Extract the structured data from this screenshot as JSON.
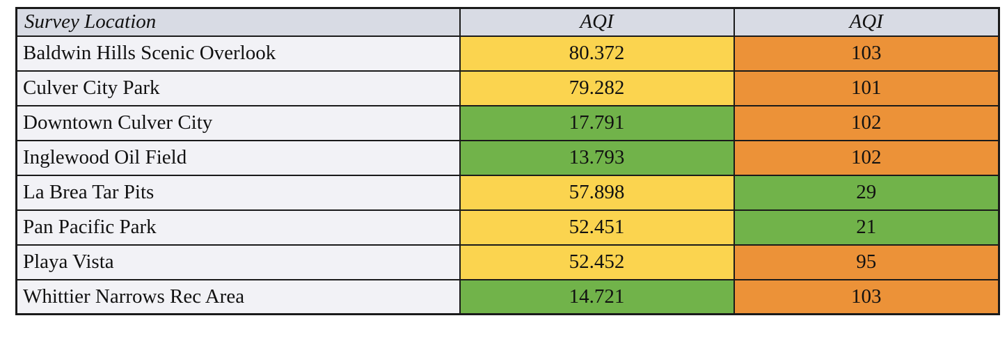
{
  "table": {
    "columns": [
      {
        "label": "Survey Location"
      },
      {
        "label": "AQI"
      },
      {
        "label": "AQI"
      }
    ],
    "rows": [
      {
        "location": "Baldwin Hills Scenic Overlook",
        "aqi1": "80.372",
        "aqi1_level": "yellow",
        "aqi2": "103",
        "aqi2_level": "orange"
      },
      {
        "location": "Culver City Park",
        "aqi1": "79.282",
        "aqi1_level": "yellow",
        "aqi2": "101",
        "aqi2_level": "orange"
      },
      {
        "location": "Downtown Culver City",
        "aqi1": "17.791",
        "aqi1_level": "green",
        "aqi2": "102",
        "aqi2_level": "orange"
      },
      {
        "location": "Inglewood Oil Field",
        "aqi1": "13.793",
        "aqi1_level": "green",
        "aqi2": "102",
        "aqi2_level": "orange"
      },
      {
        "location": "La Brea Tar Pits",
        "aqi1": "57.898",
        "aqi1_level": "yellow",
        "aqi2": "29",
        "aqi2_level": "green"
      },
      {
        "location": "Pan Pacific Park",
        "aqi1": "52.451",
        "aqi1_level": "yellow",
        "aqi2": "21",
        "aqi2_level": "green"
      },
      {
        "location": "Playa Vista",
        "aqi1": "52.452",
        "aqi1_level": "yellow",
        "aqi2": "95",
        "aqi2_level": "orange"
      },
      {
        "location": "Whittier Narrows Rec Area",
        "aqi1": "14.721",
        "aqi1_level": "green",
        "aqi2": "103",
        "aqi2_level": "orange"
      }
    ]
  },
  "colors": {
    "yellow": "#FBD44F",
    "green": "#71B34A",
    "orange": "#EC9238",
    "header_bg": "#D8DBE4",
    "row_label_bg": "#F2F2F6",
    "border": "#1A1A1A"
  },
  "chart_data": {
    "type": "table",
    "title": "",
    "columns": [
      "Survey Location",
      "AQI",
      "AQI"
    ],
    "rows": [
      [
        "Baldwin Hills Scenic Overlook",
        80.372,
        103
      ],
      [
        "Culver City Park",
        79.282,
        101
      ],
      [
        "Downtown Culver City",
        17.791,
        102
      ],
      [
        "Inglewood Oil Field",
        13.793,
        102
      ],
      [
        "La Brea Tar Pits",
        57.898,
        29
      ],
      [
        "Pan Pacific Park",
        52.451,
        21
      ],
      [
        "Playa Vista",
        52.452,
        95
      ],
      [
        "Whittier Narrows Rec Area",
        14.721,
        103
      ]
    ],
    "cell_color_coding": "green = low AQI, yellow = moderate AQI, orange = high AQI"
  }
}
